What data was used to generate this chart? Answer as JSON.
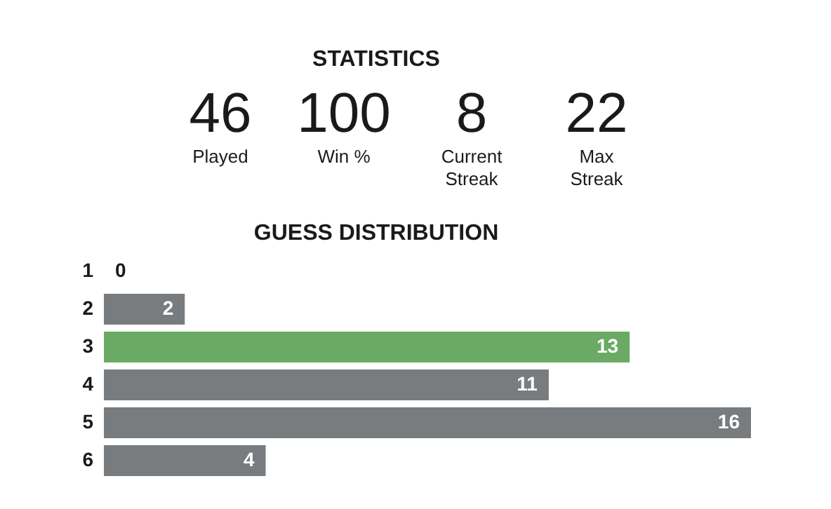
{
  "chart_data": {
    "type": "bar",
    "orientation": "horizontal",
    "title": "STATISTICS",
    "subtitle": "GUESS DISTRIBUTION",
    "annotations": [
      "46",
      "Played",
      "100",
      "Win %",
      "8",
      "Current Streak",
      "22",
      "Max Streak"
    ],
    "categories": [
      "1",
      "2",
      "3",
      "4",
      "5",
      "6"
    ],
    "values": [
      0,
      2,
      13,
      11,
      16,
      4
    ],
    "colors": [
      "#787c7e",
      "#787c7e",
      "#6aaa64",
      "#787c7e",
      "#787c7e",
      "#787c7e"
    ],
    "data_labels": true,
    "tick_labels": "y",
    "grid": false
  }
}
